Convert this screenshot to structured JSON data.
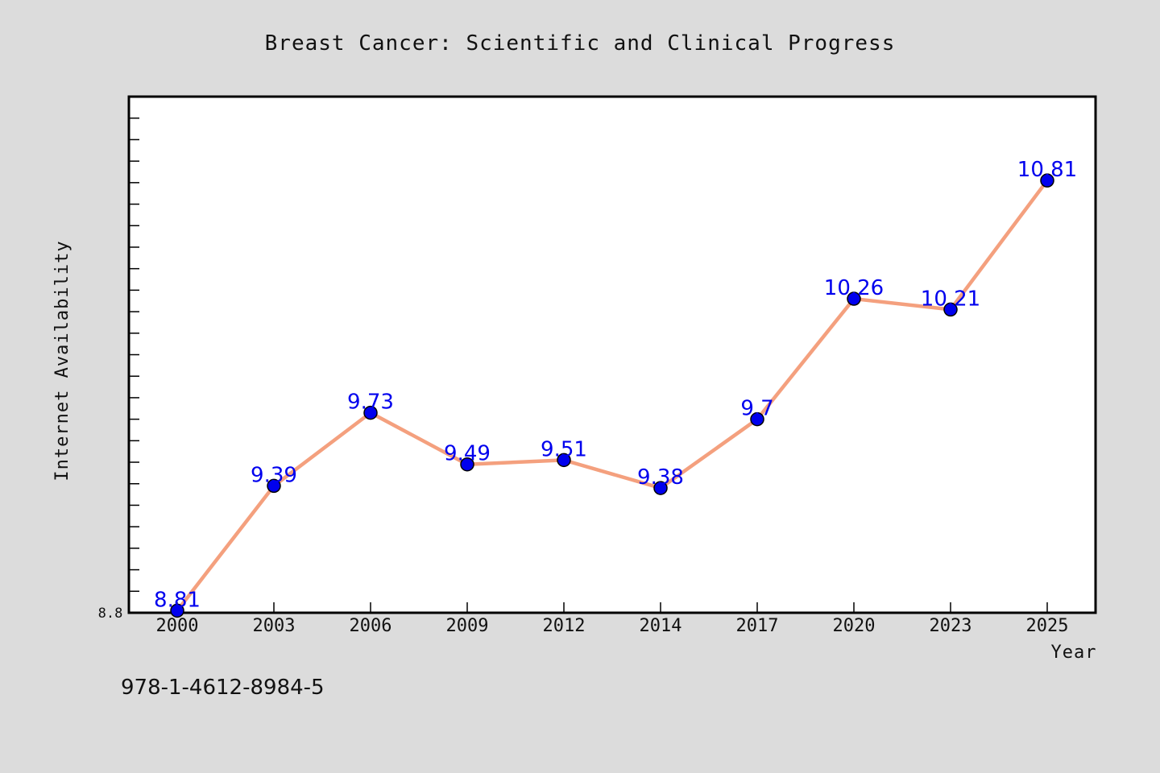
{
  "chart_data": {
    "type": "line",
    "title": "Breast Cancer: Scientific and Clinical Progress",
    "xlabel": "Year",
    "ylabel": "Internet Availability",
    "categories": [
      "2000",
      "2003",
      "2006",
      "2009",
      "2012",
      "2014",
      "2017",
      "2020",
      "2023",
      "2025"
    ],
    "values": [
      8.81,
      9.39,
      9.73,
      9.49,
      9.51,
      9.38,
      9.7,
      10.26,
      10.21,
      10.81
    ],
    "data_labels": [
      "8.81",
      "9.39",
      "9.73",
      "9.49",
      "9.51",
      "9.38",
      "9.7",
      "10.26",
      "10.21",
      "10.81"
    ],
    "y_tick_labels": [
      "8.8"
    ],
    "ylim": [
      8.8,
      11.2
    ],
    "grid": false,
    "line_color": "#f4a07e",
    "marker_color": "#0000ee",
    "label_color": "#0000ee"
  },
  "footer_text": "978-1-4612-8984-5"
}
